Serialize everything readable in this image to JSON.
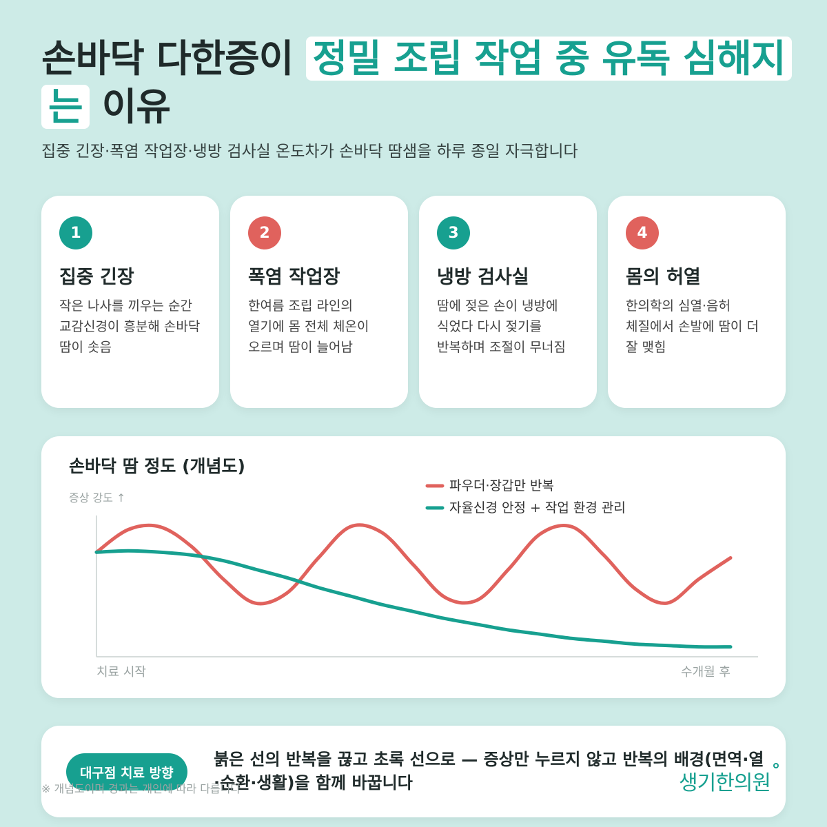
{
  "header": {
    "title_prefix": "손바닥 다한증이",
    "title_highlight_1": "정밀 조립 작업 중 유독 심해지",
    "title_highlight_2": "는",
    "title_suffix": "이유",
    "subtitle": "집중 긴장·폭염 작업장·냉방 검사실 온도차가 손바닥 땀샘을 하루 종일 자극합니다"
  },
  "cards": [
    {
      "num": "1",
      "color": "teal",
      "title": "집중 긴장",
      "desc": "작은 나사를 끼우는 순간 교감신경이 흥분해 손바닥 땀이 솟음"
    },
    {
      "num": "2",
      "color": "red",
      "title": "폭염 작업장",
      "desc": "한여름 조립 라인의 열기에 몸 전체 체온이 오르며 땀이 늘어남"
    },
    {
      "num": "3",
      "color": "teal",
      "title": "냉방 검사실",
      "desc": "땀에 젖은 손이 냉방에 식었다 다시 젖기를 반복하며 조절이 무너짐"
    },
    {
      "num": "4",
      "color": "red",
      "title": "몸의 허열",
      "desc": "한의학의 심열·음허 체질에서 손발에 땀이 더 잘 맺힘"
    }
  ],
  "chart_data": {
    "type": "line",
    "title": "손바닥 땀 정도 (개념도)",
    "ylabel": "증상 강도 ↑",
    "xlabel_start": "치료 시작",
    "xlabel_end": "수개월 후",
    "x": [
      0,
      0.05,
      0.1,
      0.15,
      0.2,
      0.25,
      0.3,
      0.35,
      0.4,
      0.45,
      0.5,
      0.55,
      0.6,
      0.65,
      0.7,
      0.75,
      0.8,
      0.85,
      0.9,
      0.95,
      1.0
    ],
    "ylim": [
      0,
      1
    ],
    "legend_position": "top-right",
    "series": [
      {
        "name": "파우더·장갑만 반복",
        "color": "#e0625d",
        "values": [
          0.74,
          0.9,
          0.92,
          0.78,
          0.55,
          0.38,
          0.45,
          0.7,
          0.92,
          0.88,
          0.65,
          0.42,
          0.4,
          0.62,
          0.87,
          0.92,
          0.72,
          0.48,
          0.38,
          0.55,
          0.7
        ]
      },
      {
        "name": "자율신경 안정 + 작업 환경 관리",
        "color": "#17a090",
        "values": [
          0.74,
          0.75,
          0.74,
          0.72,
          0.68,
          0.62,
          0.56,
          0.49,
          0.43,
          0.37,
          0.32,
          0.27,
          0.23,
          0.19,
          0.16,
          0.13,
          0.11,
          0.09,
          0.08,
          0.07,
          0.07
        ]
      }
    ]
  },
  "bottom": {
    "pill": "대구점 치료 방향",
    "text": "붉은 선의 반복을 끊고 초록 선으로 — 증상만 누르지 않고 반복의 배경(면역·열·순환·생활)을 함께 바꿉니다",
    "footnote": "※ 개념도이며 경과는 개인에 따라 다릅니다",
    "logo": "생기한의원"
  },
  "colors": {
    "background": "#cdebe7",
    "teal": "#17a090",
    "red": "#e0625d"
  }
}
